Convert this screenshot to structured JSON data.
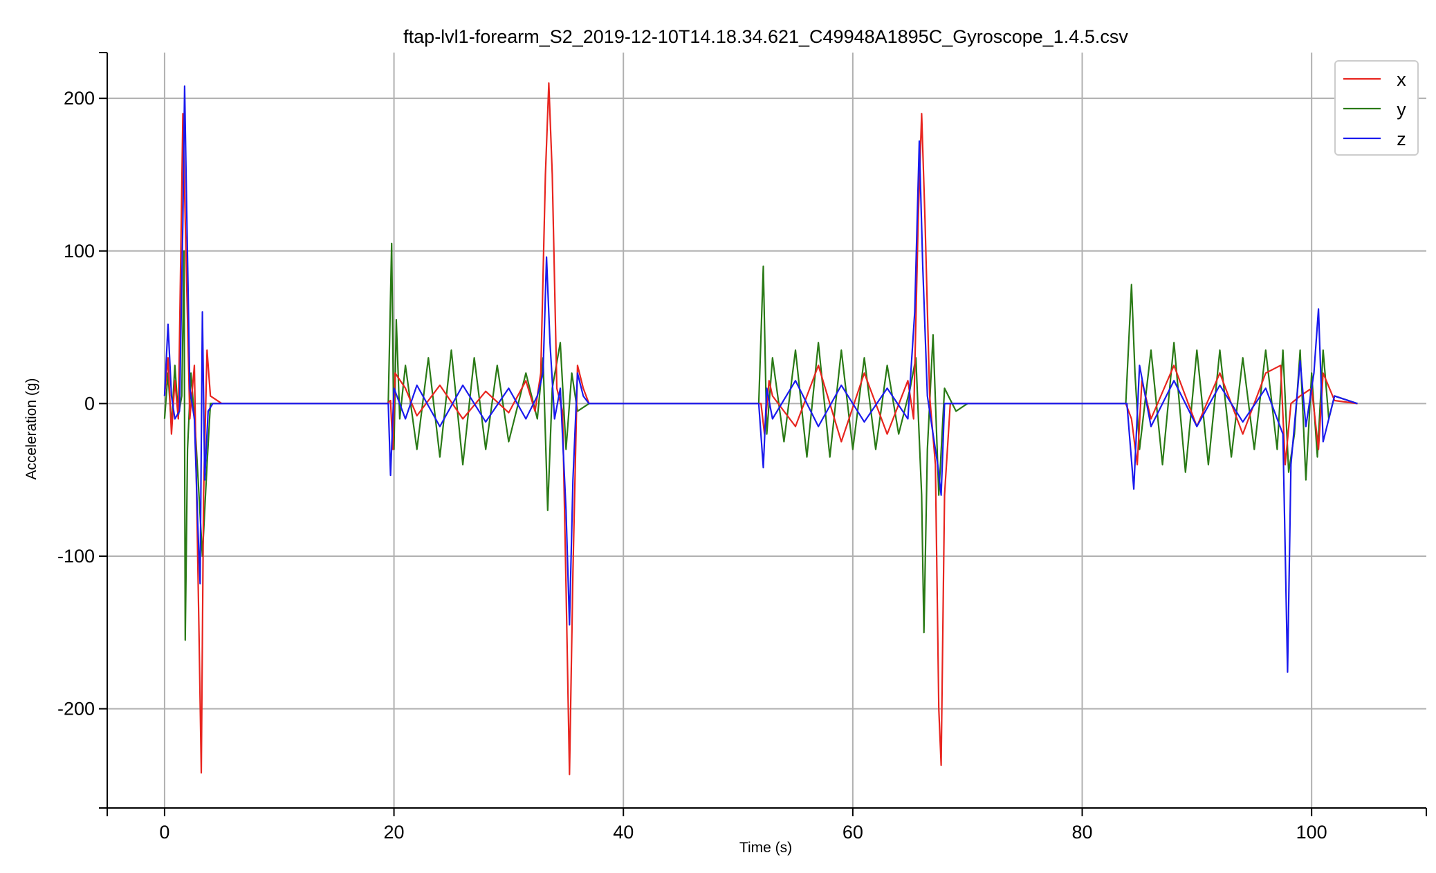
{
  "chart_data": {
    "type": "line",
    "title": "ftap-lvl1-forearm_S2_2019-12-10T14.18.34.621_C49948A1895C_Gyroscope_1.4.5.csv",
    "xlabel": "Time (s)",
    "ylabel": "Acceleration (g)",
    "xlim": [
      -5,
      110
    ],
    "ylim": [
      -265,
      230
    ],
    "xticks": [
      0,
      20,
      40,
      60,
      80,
      100
    ],
    "yticks": [
      -200,
      -100,
      0,
      100,
      200
    ],
    "xtick_labels": [
      "0",
      "20",
      "40",
      "60",
      "80",
      "100"
    ],
    "ytick_labels": [
      "-200",
      "-100",
      "0",
      "100",
      "200"
    ],
    "grid": true,
    "legend_position": "top-right",
    "series": [
      {
        "name": "x",
        "color": "#e8251f",
        "points": [
          [
            0,
            5
          ],
          [
            0.3,
            30
          ],
          [
            0.6,
            -20
          ],
          [
            0.9,
            15
          ],
          [
            1.2,
            -10
          ],
          [
            1.6,
            190
          ],
          [
            1.8,
            120
          ],
          [
            2.2,
            -10
          ],
          [
            2.6,
            25
          ],
          [
            3.0,
            -150
          ],
          [
            3.2,
            -242
          ],
          [
            3.4,
            -60
          ],
          [
            3.7,
            35
          ],
          [
            4.0,
            5
          ],
          [
            5,
            0
          ],
          [
            10,
            0
          ],
          [
            19.4,
            0
          ],
          [
            19.7,
            2
          ],
          [
            19.9,
            -30
          ],
          [
            20.1,
            20
          ],
          [
            21,
            10
          ],
          [
            22,
            -8
          ],
          [
            24,
            12
          ],
          [
            26,
            -10
          ],
          [
            28,
            8
          ],
          [
            30,
            -6
          ],
          [
            31.5,
            15
          ],
          [
            32.3,
            -5
          ],
          [
            32.8,
            20
          ],
          [
            33.2,
            150
          ],
          [
            33.5,
            210
          ],
          [
            33.8,
            150
          ],
          [
            34.2,
            10
          ],
          [
            34.7,
            -5
          ],
          [
            35.0,
            -120
          ],
          [
            35.3,
            -243
          ],
          [
            35.6,
            -110
          ],
          [
            36.0,
            25
          ],
          [
            36.5,
            10
          ],
          [
            37,
            0
          ],
          [
            45,
            0
          ],
          [
            52.0,
            0
          ],
          [
            52.3,
            -20
          ],
          [
            52.7,
            15
          ],
          [
            53,
            5
          ],
          [
            55,
            -15
          ],
          [
            57,
            25
          ],
          [
            59,
            -25
          ],
          [
            61,
            20
          ],
          [
            63,
            -20
          ],
          [
            64.8,
            15
          ],
          [
            65.3,
            -10
          ],
          [
            65.7,
            120
          ],
          [
            66.0,
            190
          ],
          [
            66.3,
            120
          ],
          [
            66.7,
            5
          ],
          [
            67.2,
            -40
          ],
          [
            67.5,
            -200
          ],
          [
            67.7,
            -237
          ],
          [
            68.0,
            -60
          ],
          [
            68.5,
            0
          ],
          [
            70,
            0
          ],
          [
            80,
            0
          ],
          [
            83.8,
            0
          ],
          [
            84.3,
            -10
          ],
          [
            84.8,
            -40
          ],
          [
            85.2,
            15
          ],
          [
            86,
            -10
          ],
          [
            88,
            25
          ],
          [
            90,
            -15
          ],
          [
            92,
            20
          ],
          [
            94,
            -20
          ],
          [
            96,
            20
          ],
          [
            97.3,
            25
          ],
          [
            97.7,
            -40
          ],
          [
            98.2,
            0
          ],
          [
            99,
            5
          ],
          [
            100,
            10
          ],
          [
            100.6,
            -30
          ],
          [
            101,
            20
          ],
          [
            102,
            2
          ],
          [
            104,
            0
          ]
        ]
      },
      {
        "name": "y",
        "color": "#2a7a16",
        "points": [
          [
            0,
            -10
          ],
          [
            0.3,
            20
          ],
          [
            0.6,
            -15
          ],
          [
            0.9,
            25
          ],
          [
            1.2,
            -8
          ],
          [
            1.5,
            5
          ],
          [
            1.7,
            100
          ],
          [
            1.8,
            -155
          ],
          [
            2.0,
            -30
          ],
          [
            2.3,
            20
          ],
          [
            2.7,
            -20
          ],
          [
            3.0,
            -60
          ],
          [
            3.3,
            -100
          ],
          [
            3.7,
            -40
          ],
          [
            4.0,
            0
          ],
          [
            5,
            0
          ],
          [
            19.5,
            0
          ],
          [
            19.8,
            105
          ],
          [
            20.0,
            -30
          ],
          [
            20.2,
            55
          ],
          [
            20.5,
            -10
          ],
          [
            21,
            25
          ],
          [
            22,
            -30
          ],
          [
            23,
            30
          ],
          [
            24,
            -35
          ],
          [
            25,
            35
          ],
          [
            26,
            -40
          ],
          [
            27,
            30
          ],
          [
            28,
            -30
          ],
          [
            29,
            25
          ],
          [
            30,
            -25
          ],
          [
            31.5,
            20
          ],
          [
            32.5,
            -10
          ],
          [
            33.0,
            30
          ],
          [
            33.4,
            -70
          ],
          [
            33.8,
            10
          ],
          [
            34.5,
            40
          ],
          [
            35.0,
            -30
          ],
          [
            35.5,
            20
          ],
          [
            36,
            -5
          ],
          [
            37,
            0
          ],
          [
            51.8,
            0
          ],
          [
            52.2,
            90
          ],
          [
            52.5,
            -20
          ],
          [
            53,
            30
          ],
          [
            54,
            -25
          ],
          [
            55,
            35
          ],
          [
            56,
            -35
          ],
          [
            57,
            40
          ],
          [
            58,
            -35
          ],
          [
            59,
            35
          ],
          [
            60,
            -30
          ],
          [
            61,
            30
          ],
          [
            62,
            -30
          ],
          [
            63,
            25
          ],
          [
            64,
            -20
          ],
          [
            65,
            10
          ],
          [
            65.5,
            30
          ],
          [
            66.0,
            -60
          ],
          [
            66.2,
            -150
          ],
          [
            66.5,
            -30
          ],
          [
            67,
            45
          ],
          [
            67.5,
            -60
          ],
          [
            68,
            10
          ],
          [
            69,
            -5
          ],
          [
            70,
            0
          ],
          [
            83.8,
            0
          ],
          [
            84.3,
            78
          ],
          [
            84.6,
            20
          ],
          [
            85,
            -30
          ],
          [
            86,
            35
          ],
          [
            87,
            -40
          ],
          [
            88,
            40
          ],
          [
            89,
            -45
          ],
          [
            90,
            35
          ],
          [
            91,
            -40
          ],
          [
            92,
            35
          ],
          [
            93,
            -35
          ],
          [
            94,
            30
          ],
          [
            95,
            -30
          ],
          [
            96,
            35
          ],
          [
            97,
            -30
          ],
          [
            97.5,
            35
          ],
          [
            98,
            -45
          ],
          [
            98.5,
            -20
          ],
          [
            99,
            35
          ],
          [
            99.5,
            -50
          ],
          [
            100,
            20
          ],
          [
            100.5,
            -35
          ],
          [
            101,
            35
          ],
          [
            101.5,
            -10
          ],
          [
            102,
            5
          ],
          [
            104,
            0
          ]
        ]
      },
      {
        "name": "z",
        "color": "#1a1aee",
        "points": [
          [
            0,
            5
          ],
          [
            0.3,
            52
          ],
          [
            0.6,
            5
          ],
          [
            0.9,
            -10
          ],
          [
            1.3,
            -5
          ],
          [
            1.6,
            120
          ],
          [
            1.75,
            208
          ],
          [
            1.9,
            140
          ],
          [
            2.2,
            10
          ],
          [
            2.6,
            -10
          ],
          [
            2.9,
            -80
          ],
          [
            3.1,
            -118
          ],
          [
            3.3,
            60
          ],
          [
            3.5,
            -50
          ],
          [
            3.8,
            -5
          ],
          [
            4.2,
            0
          ],
          [
            10,
            0
          ],
          [
            19.5,
            0
          ],
          [
            19.7,
            -47
          ],
          [
            20,
            10
          ],
          [
            21,
            -10
          ],
          [
            22,
            12
          ],
          [
            24,
            -15
          ],
          [
            26,
            12
          ],
          [
            28,
            -12
          ],
          [
            30,
            10
          ],
          [
            31.5,
            -10
          ],
          [
            32.5,
            5
          ],
          [
            33.0,
            20
          ],
          [
            33.3,
            96
          ],
          [
            33.6,
            40
          ],
          [
            34.0,
            -10
          ],
          [
            34.5,
            10
          ],
          [
            35.0,
            -70
          ],
          [
            35.3,
            -145
          ],
          [
            35.6,
            -50
          ],
          [
            36,
            20
          ],
          [
            36.5,
            5
          ],
          [
            37,
            0
          ],
          [
            51.8,
            0
          ],
          [
            52.2,
            -42
          ],
          [
            52.5,
            10
          ],
          [
            53,
            -10
          ],
          [
            55,
            15
          ],
          [
            57,
            -15
          ],
          [
            59,
            12
          ],
          [
            61,
            -12
          ],
          [
            63,
            10
          ],
          [
            64.8,
            -10
          ],
          [
            65.4,
            60
          ],
          [
            65.8,
            172
          ],
          [
            66.1,
            90
          ],
          [
            66.5,
            5
          ],
          [
            67.0,
            -20
          ],
          [
            67.4,
            -40
          ],
          [
            67.7,
            -60
          ],
          [
            68,
            0
          ],
          [
            69,
            0
          ],
          [
            83.9,
            0
          ],
          [
            84.5,
            -56
          ],
          [
            85.0,
            25
          ],
          [
            86,
            -15
          ],
          [
            88,
            15
          ],
          [
            90,
            -15
          ],
          [
            92,
            12
          ],
          [
            94,
            -12
          ],
          [
            96,
            10
          ],
          [
            97.5,
            -20
          ],
          [
            97.9,
            -176
          ],
          [
            98.2,
            -40
          ],
          [
            99,
            28
          ],
          [
            99.5,
            -15
          ],
          [
            100.2,
            20
          ],
          [
            100.6,
            62
          ],
          [
            101,
            -25
          ],
          [
            102,
            5
          ],
          [
            104,
            0
          ]
        ]
      }
    ]
  }
}
